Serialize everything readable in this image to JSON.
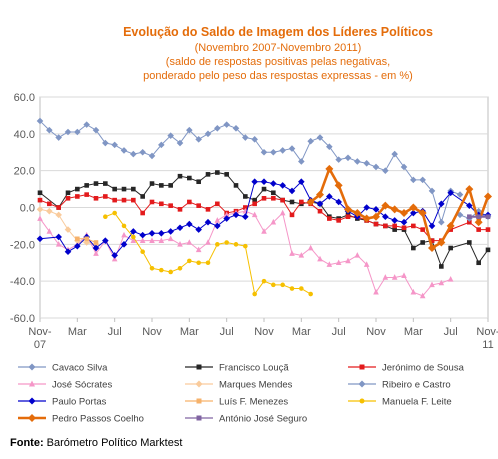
{
  "chart_data": {
    "type": "line",
    "title": "Evolução do Saldo  de Imagem dos Líderes Políticos",
    "subtitle_lines": [
      "(Novembro 2007-Novembro 2011)",
      "(saldo de respostas positivas pelas negativas,",
      "ponderado pelo peso das respostas expressas - em %)"
    ],
    "ylim": [
      -60,
      60
    ],
    "yticks": [
      -60,
      -40,
      -20,
      0,
      20,
      40,
      60
    ],
    "ytick_labels": [
      "-60.0",
      "-40.0",
      "-20.0",
      "0.0",
      "20.0",
      "40.0",
      "60.0"
    ],
    "xlim": [
      0,
      48
    ],
    "xtick_positions": [
      0,
      4,
      8,
      12,
      16,
      20,
      24,
      28,
      32,
      36,
      40,
      44,
      48
    ],
    "xtick_labels": [
      "Nov-\n07",
      "Mar",
      "Jul",
      "Nov",
      "Mar",
      "Jul",
      "Nov",
      "Mar",
      "Jul",
      "Nov",
      "Mar",
      "Jul",
      "Nov-\n11"
    ],
    "grid": true,
    "legend_position": "bottom",
    "series": [
      {
        "name": "Cavaco Silva",
        "color": "#8096c4",
        "marker": "diamond",
        "width": 1,
        "points": [
          [
            0,
            47
          ],
          [
            1,
            42
          ],
          [
            2,
            38
          ],
          [
            3,
            41
          ],
          [
            4,
            41
          ],
          [
            5,
            45
          ],
          [
            6,
            42
          ],
          [
            7,
            35
          ],
          [
            8,
            34
          ],
          [
            9,
            31
          ],
          [
            10,
            29
          ],
          [
            11,
            30
          ],
          [
            12,
            28
          ],
          [
            13,
            34
          ],
          [
            14,
            39
          ],
          [
            15,
            35
          ],
          [
            16,
            42
          ],
          [
            17,
            37
          ],
          [
            18,
            40
          ],
          [
            19,
            43
          ],
          [
            20,
            45
          ],
          [
            21,
            43
          ],
          [
            22,
            38
          ],
          [
            23,
            37
          ],
          [
            24,
            30
          ],
          [
            25,
            30
          ],
          [
            26,
            31
          ],
          [
            27,
            32
          ],
          [
            28,
            25
          ],
          [
            29,
            36
          ],
          [
            30,
            38
          ],
          [
            31,
            33
          ],
          [
            32,
            26
          ],
          [
            33,
            27
          ],
          [
            34,
            25
          ],
          [
            35,
            24
          ],
          [
            36,
            22
          ],
          [
            37,
            20
          ],
          [
            38,
            29
          ],
          [
            39,
            22
          ],
          [
            40,
            15
          ],
          [
            41,
            15
          ],
          [
            42,
            9
          ],
          [
            43,
            -8
          ],
          [
            44,
            9
          ],
          [
            45,
            7
          ]
        ]
      },
      {
        "name": "Francisco Louçã",
        "color": "#262626",
        "marker": "square",
        "width": 1,
        "points": [
          [
            0,
            8
          ],
          [
            2,
            0
          ],
          [
            3,
            8
          ],
          [
            4,
            10
          ],
          [
            5,
            12
          ],
          [
            6,
            13
          ],
          [
            7,
            13
          ],
          [
            8,
            10
          ],
          [
            9,
            10
          ],
          [
            10,
            10
          ],
          [
            11,
            6
          ],
          [
            12,
            13
          ],
          [
            13,
            12
          ],
          [
            14,
            12
          ],
          [
            15,
            17
          ],
          [
            16,
            16
          ],
          [
            17,
            14
          ],
          [
            18,
            18
          ],
          [
            19,
            19
          ],
          [
            20,
            18
          ],
          [
            21,
            12
          ],
          [
            22,
            6
          ],
          [
            23,
            4
          ],
          [
            24,
            10
          ],
          [
            25,
            8
          ],
          [
            26,
            4
          ],
          [
            27,
            3
          ],
          [
            28,
            2
          ],
          [
            29,
            3
          ],
          [
            30,
            2
          ],
          [
            31,
            -5
          ],
          [
            32,
            -6
          ],
          [
            33,
            -4
          ],
          [
            34,
            -6
          ],
          [
            35,
            -7
          ],
          [
            36,
            -9
          ],
          [
            37,
            -10
          ],
          [
            38,
            -12
          ],
          [
            39,
            -12
          ],
          [
            40,
            -22
          ],
          [
            41,
            -19
          ],
          [
            42,
            -18
          ],
          [
            43,
            -32
          ],
          [
            44,
            -22
          ],
          [
            46,
            -19
          ],
          [
            47,
            -30
          ],
          [
            48,
            -23
          ]
        ]
      },
      {
        "name": "Jerónimo de Sousa",
        "color": "#e31a1c",
        "marker": "square",
        "width": 1,
        "points": [
          [
            0,
            4
          ],
          [
            1,
            2
          ],
          [
            2,
            0
          ],
          [
            3,
            5
          ],
          [
            4,
            6
          ],
          [
            5,
            7
          ],
          [
            6,
            5
          ],
          [
            7,
            6
          ],
          [
            8,
            4
          ],
          [
            9,
            4
          ],
          [
            10,
            4
          ],
          [
            11,
            -3
          ],
          [
            12,
            3
          ],
          [
            13,
            2
          ],
          [
            14,
            1
          ],
          [
            15,
            -1
          ],
          [
            16,
            3
          ],
          [
            17,
            1
          ],
          [
            18,
            -1
          ],
          [
            19,
            2
          ],
          [
            20,
            -3
          ],
          [
            21,
            -2
          ],
          [
            22,
            0
          ],
          [
            23,
            2
          ],
          [
            24,
            5
          ],
          [
            25,
            5
          ],
          [
            26,
            4
          ],
          [
            27,
            -4
          ],
          [
            28,
            3
          ],
          [
            29,
            2
          ],
          [
            30,
            -2
          ],
          [
            31,
            -6
          ],
          [
            32,
            -7
          ],
          [
            33,
            -5
          ],
          [
            34,
            -5
          ],
          [
            35,
            -7
          ],
          [
            36,
            -9
          ],
          [
            37,
            -10
          ],
          [
            38,
            -10
          ],
          [
            39,
            -11
          ],
          [
            40,
            -10
          ],
          [
            41,
            -12
          ],
          [
            42,
            -18
          ],
          [
            43,
            -18
          ],
          [
            44,
            -12
          ],
          [
            46,
            -8
          ],
          [
            47,
            -12
          ],
          [
            48,
            -12
          ]
        ]
      },
      {
        "name": "José Sócrates",
        "color": "#f596c8",
        "marker": "triangle",
        "width": 1,
        "points": [
          [
            0,
            -6
          ],
          [
            1,
            -13
          ],
          [
            2,
            -20
          ],
          [
            3,
            -23
          ],
          [
            4,
            -20
          ],
          [
            5,
            -15
          ],
          [
            6,
            -25
          ],
          [
            7,
            -18
          ],
          [
            8,
            -28
          ],
          [
            9,
            -15
          ],
          [
            10,
            -18
          ],
          [
            11,
            -18
          ],
          [
            12,
            -18
          ],
          [
            13,
            -18
          ],
          [
            14,
            -17
          ],
          [
            15,
            -20
          ],
          [
            16,
            -19
          ],
          [
            17,
            -23
          ],
          [
            18,
            -19
          ],
          [
            19,
            -7
          ],
          [
            20,
            -4
          ],
          [
            21,
            -3
          ],
          [
            22,
            -2
          ],
          [
            23,
            -4
          ],
          [
            24,
            -13
          ],
          [
            25,
            -8
          ],
          [
            26,
            -3
          ],
          [
            27,
            -25
          ],
          [
            28,
            -26
          ],
          [
            29,
            -22
          ],
          [
            30,
            -28
          ],
          [
            31,
            -31
          ],
          [
            32,
            -30
          ],
          [
            33,
            -29
          ],
          [
            34,
            -26
          ],
          [
            35,
            -31
          ],
          [
            36,
            -46
          ],
          [
            37,
            -38
          ],
          [
            38,
            -38
          ],
          [
            39,
            -37
          ],
          [
            40,
            -46
          ],
          [
            41,
            -48
          ],
          [
            42,
            -42
          ],
          [
            43,
            -41
          ],
          [
            44,
            -39
          ]
        ]
      },
      {
        "name": "Marques Mendes",
        "color": "#f9cb9c",
        "marker": "diamond",
        "width": 1,
        "points": [
          [
            0,
            -1
          ],
          [
            1,
            -2
          ],
          [
            2,
            -4
          ],
          [
            3,
            -12
          ],
          [
            4,
            -18
          ],
          [
            5,
            -19
          ],
          [
            6,
            -20
          ]
        ]
      },
      {
        "name": "Ribeiro e Castro",
        "color": "#8096c4",
        "marker": "diamond",
        "width": 1,
        "points": [
          [
            45,
            -4
          ],
          [
            46,
            -6
          ],
          [
            47,
            -2
          ],
          [
            48,
            -5
          ]
        ]
      },
      {
        "name": "Paulo Portas",
        "color": "#0000cc",
        "marker": "diamond",
        "width": 1,
        "points": [
          [
            0,
            -17
          ],
          [
            2,
            -16
          ],
          [
            3,
            -24
          ],
          [
            4,
            -21
          ],
          [
            5,
            -16
          ],
          [
            6,
            -22
          ],
          [
            7,
            -18
          ],
          [
            8,
            -26
          ],
          [
            9,
            -20
          ],
          [
            10,
            -13
          ],
          [
            11,
            -15
          ],
          [
            12,
            -14
          ],
          [
            13,
            -14
          ],
          [
            14,
            -13
          ],
          [
            15,
            -11
          ],
          [
            16,
            -9
          ],
          [
            17,
            -12
          ],
          [
            18,
            -8
          ],
          [
            19,
            -10
          ],
          [
            20,
            -6
          ],
          [
            21,
            -4
          ],
          [
            22,
            -5
          ],
          [
            23,
            14
          ],
          [
            24,
            14
          ],
          [
            25,
            13
          ],
          [
            26,
            12
          ],
          [
            27,
            9
          ],
          [
            28,
            14
          ],
          [
            29,
            4
          ],
          [
            30,
            2
          ],
          [
            31,
            6
          ],
          [
            32,
            3
          ],
          [
            33,
            -2
          ],
          [
            34,
            -5
          ],
          [
            35,
            0
          ],
          [
            36,
            -1
          ],
          [
            37,
            -5
          ],
          [
            38,
            -7
          ],
          [
            39,
            -8
          ],
          [
            40,
            -3
          ],
          [
            41,
            -2
          ],
          [
            42,
            -10
          ],
          [
            43,
            2
          ],
          [
            44,
            8
          ],
          [
            46,
            1
          ],
          [
            47,
            -4
          ],
          [
            48,
            -4
          ]
        ]
      },
      {
        "name": "Luís F. Menezes",
        "color": "#f6b26b",
        "marker": "square",
        "width": 1,
        "points": [
          [
            4,
            -17
          ],
          [
            5,
            -17
          ],
          [
            6,
            -19
          ]
        ]
      },
      {
        "name": "Manuela F. Leite",
        "color": "#f6c000",
        "marker": "circle",
        "width": 1,
        "points": [
          [
            7,
            -5
          ],
          [
            8,
            -3
          ],
          [
            9,
            -10
          ],
          [
            10,
            -16
          ],
          [
            11,
            -24
          ],
          [
            12,
            -33
          ],
          [
            13,
            -34
          ],
          [
            14,
            -35
          ],
          [
            15,
            -33
          ],
          [
            16,
            -29
          ],
          [
            17,
            -30
          ],
          [
            18,
            -30
          ],
          [
            19,
            -20
          ],
          [
            20,
            -19
          ],
          [
            21,
            -20
          ],
          [
            22,
            -21
          ],
          [
            23,
            -47
          ],
          [
            24,
            -40
          ],
          [
            25,
            -42
          ],
          [
            26,
            -42
          ],
          [
            27,
            -44
          ],
          [
            28,
            -44
          ],
          [
            29,
            -47
          ]
        ]
      },
      {
        "name": "Pedro Passos Coelho",
        "color": "#e46c0a",
        "marker": "diamond",
        "width": 2.6,
        "points": [
          [
            29,
            3
          ],
          [
            30,
            7
          ],
          [
            31,
            21
          ],
          [
            32,
            12
          ],
          [
            33,
            -1
          ],
          [
            34,
            -3
          ],
          [
            35,
            -6
          ],
          [
            36,
            -5
          ],
          [
            37,
            1
          ],
          [
            38,
            -1
          ],
          [
            39,
            -3
          ],
          [
            40,
            0
          ],
          [
            41,
            -3
          ],
          [
            42,
            -22
          ],
          [
            43,
            -19
          ],
          [
            44,
            -10
          ],
          [
            46,
            10
          ],
          [
            47,
            -8
          ],
          [
            48,
            6
          ]
        ]
      },
      {
        "name": "António José Seguro",
        "color": "#8064a2",
        "marker": "square",
        "width": 2,
        "points": [
          [
            46,
            -5
          ],
          [
            47,
            -5
          ],
          [
            48,
            -5
          ]
        ]
      }
    ]
  },
  "source": {
    "label": "Fonte:",
    "text": " Barómetro Político Marktest"
  }
}
